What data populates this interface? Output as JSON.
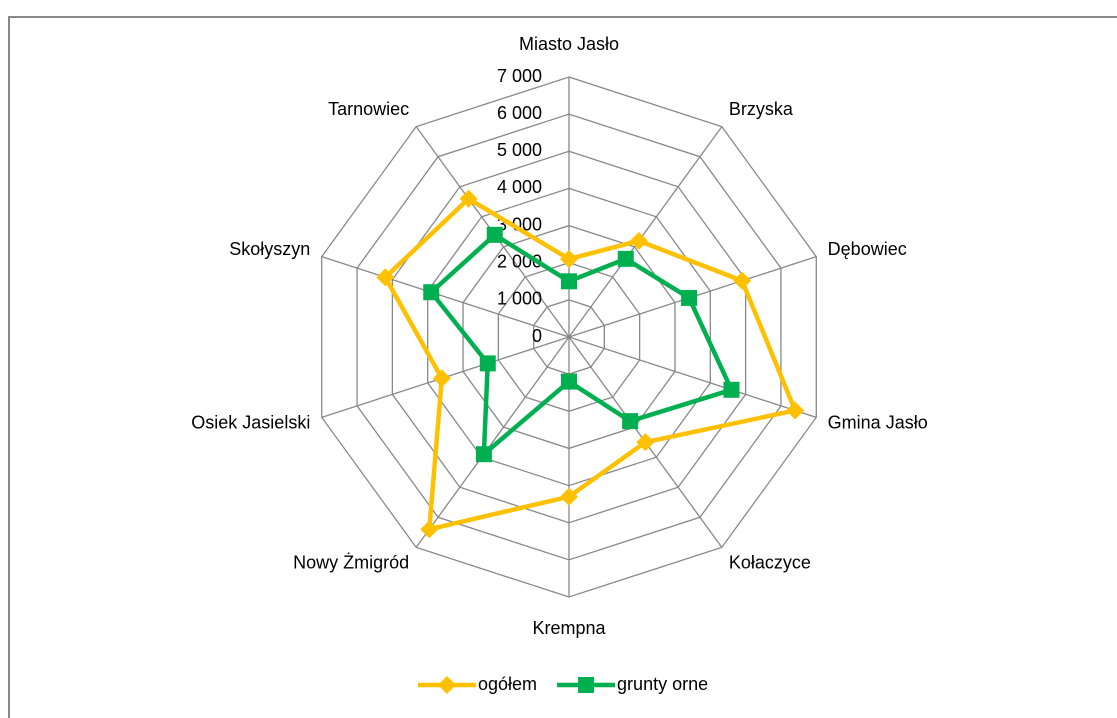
{
  "chart_data": {
    "type": "radar",
    "categories": [
      "Miasto Jasło",
      "Brzyska",
      "Dębowiec",
      "Gmina Jasło",
      "Kołaczyce",
      "Krempna",
      "Nowy Żmigród",
      "Osiek Jasielski",
      "Skołyszyn",
      "Tarnowiec"
    ],
    "series": [
      {
        "name": "ogółem",
        "color": "#ffc000",
        "values": [
          2100,
          3200,
          4900,
          6400,
          3500,
          4300,
          6400,
          3600,
          5200,
          4600
        ]
      },
      {
        "name": "grunty orne",
        "color": "#00b050",
        "values": [
          1500,
          2600,
          3400,
          4600,
          2800,
          1200,
          3900,
          2300,
          3900,
          3400
        ]
      }
    ],
    "ylim": [
      0,
      7000
    ],
    "yticks": [
      0,
      {
        "value": 1000,
        "label": "1 000"
      },
      {
        "value": 2000,
        "label": "2 000"
      },
      {
        "value": 3000,
        "label": "3 000"
      },
      {
        "value": 4000,
        "label": "4 000"
      },
      {
        "value": 5000,
        "label": "5 000"
      },
      {
        "value": 6000,
        "label": "6 000"
      },
      {
        "value": 7000,
        "label": "7 000"
      }
    ],
    "grid": true,
    "legend": "bottom"
  }
}
